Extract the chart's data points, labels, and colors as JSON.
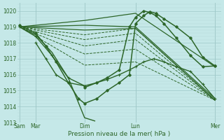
{
  "xlabel": "Pression niveau de la mer( hPa )",
  "bg_color": "#c5e8e8",
  "line_color": "#2d6629",
  "grid_major_color": "#9ec8c8",
  "grid_minor_color": "#b5d8d8",
  "ylim": [
    1013.0,
    1020.5
  ],
  "yticks": [
    1013,
    1014,
    1015,
    1016,
    1017,
    1018,
    1019,
    1020
  ],
  "xlim": [
    0.0,
    1.0
  ],
  "xtick_positions": [
    0.01,
    0.09,
    0.33,
    0.58,
    0.97
  ],
  "xtick_labels": [
    "Sam",
    "Mar",
    "Dim",
    "Lun",
    "Mer"
  ],
  "vline_positions": [
    0.01,
    0.09,
    0.33,
    0.58,
    0.97
  ],
  "ensemble_lines": [
    {
      "x": [
        0.01,
        0.33,
        0.58,
        0.97
      ],
      "y": [
        1019.0,
        1019.4,
        1019.85,
        1016.5
      ],
      "ls": "solid",
      "lw": 0.9
    },
    {
      "x": [
        0.01,
        0.33,
        0.58,
        0.97
      ],
      "y": [
        1019.0,
        1019.1,
        1019.0,
        1014.5
      ],
      "ls": "solid",
      "lw": 0.9
    },
    {
      "x": [
        0.01,
        0.33,
        0.58,
        0.97
      ],
      "y": [
        1019.0,
        1018.8,
        1018.9,
        1014.4
      ],
      "ls": "solid",
      "lw": 0.9
    },
    {
      "x": [
        0.01,
        0.33,
        0.58,
        0.97
      ],
      "y": [
        1019.0,
        1018.5,
        1018.9,
        1014.4
      ],
      "ls": "dashed",
      "lw": 0.7
    },
    {
      "x": [
        0.01,
        0.33,
        0.58,
        0.97
      ],
      "y": [
        1019.0,
        1018.2,
        1018.6,
        1014.4
      ],
      "ls": "dashed",
      "lw": 0.7
    },
    {
      "x": [
        0.01,
        0.33,
        0.58,
        0.97
      ],
      "y": [
        1019.0,
        1017.8,
        1018.2,
        1014.4
      ],
      "ls": "dashed",
      "lw": 0.7
    },
    {
      "x": [
        0.01,
        0.33,
        0.58,
        0.97
      ],
      "y": [
        1019.0,
        1017.3,
        1017.6,
        1014.4
      ],
      "ls": "dashed",
      "lw": 0.7
    },
    {
      "x": [
        0.01,
        0.33,
        0.58,
        0.97
      ],
      "y": [
        1019.0,
        1016.6,
        1016.8,
        1014.4
      ],
      "ls": "dashed",
      "lw": 0.7
    }
  ],
  "dip_curve": {
    "x": [
      0.01,
      0.09,
      0.17,
      0.25,
      0.33,
      0.38
    ],
    "y": [
      1019.0,
      1018.5,
      1017.4,
      1015.8,
      1013.3,
      1013.1
    ]
  },
  "main_curve_1": {
    "x": [
      0.01,
      0.09,
      0.17,
      0.25,
      0.33,
      0.39,
      0.44,
      0.5,
      0.55,
      0.58,
      0.62,
      0.67,
      0.72,
      0.78,
      0.85,
      0.91,
      0.97
    ],
    "y": [
      1019.0,
      1018.4,
      1017.2,
      1015.8,
      1015.3,
      1015.5,
      1015.7,
      1016.0,
      1016.3,
      1016.5,
      1016.8,
      1017.0,
      1016.8,
      1016.5,
      1016.2,
      1015.4,
      1014.5
    ]
  },
  "loop_curve": {
    "x": [
      0.09,
      0.14,
      0.19,
      0.25,
      0.33
    ],
    "y": [
      1018.0,
      1017.0,
      1016.0,
      1015.5,
      1015.3
    ]
  },
  "main_curve_2": {
    "x": [
      0.01,
      0.09,
      0.14,
      0.19,
      0.25,
      0.3,
      0.33,
      0.39,
      0.44,
      0.5,
      0.55,
      0.58,
      0.62,
      0.65,
      0.68,
      0.72,
      0.78,
      0.85,
      0.91,
      0.97
    ],
    "y": [
      1019.1,
      1018.6,
      1017.8,
      1016.8,
      1015.5,
      1014.5,
      1014.2,
      1014.5,
      1015.0,
      1015.5,
      1016.0,
      1019.2,
      1019.7,
      1019.95,
      1019.85,
      1019.5,
      1019.0,
      1018.3,
      1017.1,
      1016.55
    ]
  },
  "main_curve_3": {
    "x": [
      0.33,
      0.39,
      0.44,
      0.5,
      0.55,
      0.58,
      0.62,
      0.65,
      0.68,
      0.72,
      0.78,
      0.85,
      0.91,
      0.97
    ],
    "y": [
      1015.2,
      1015.5,
      1015.8,
      1016.3,
      1019.0,
      1019.6,
      1020.0,
      1019.9,
      1019.7,
      1019.2,
      1018.3,
      1017.2,
      1016.5,
      1016.55
    ]
  }
}
